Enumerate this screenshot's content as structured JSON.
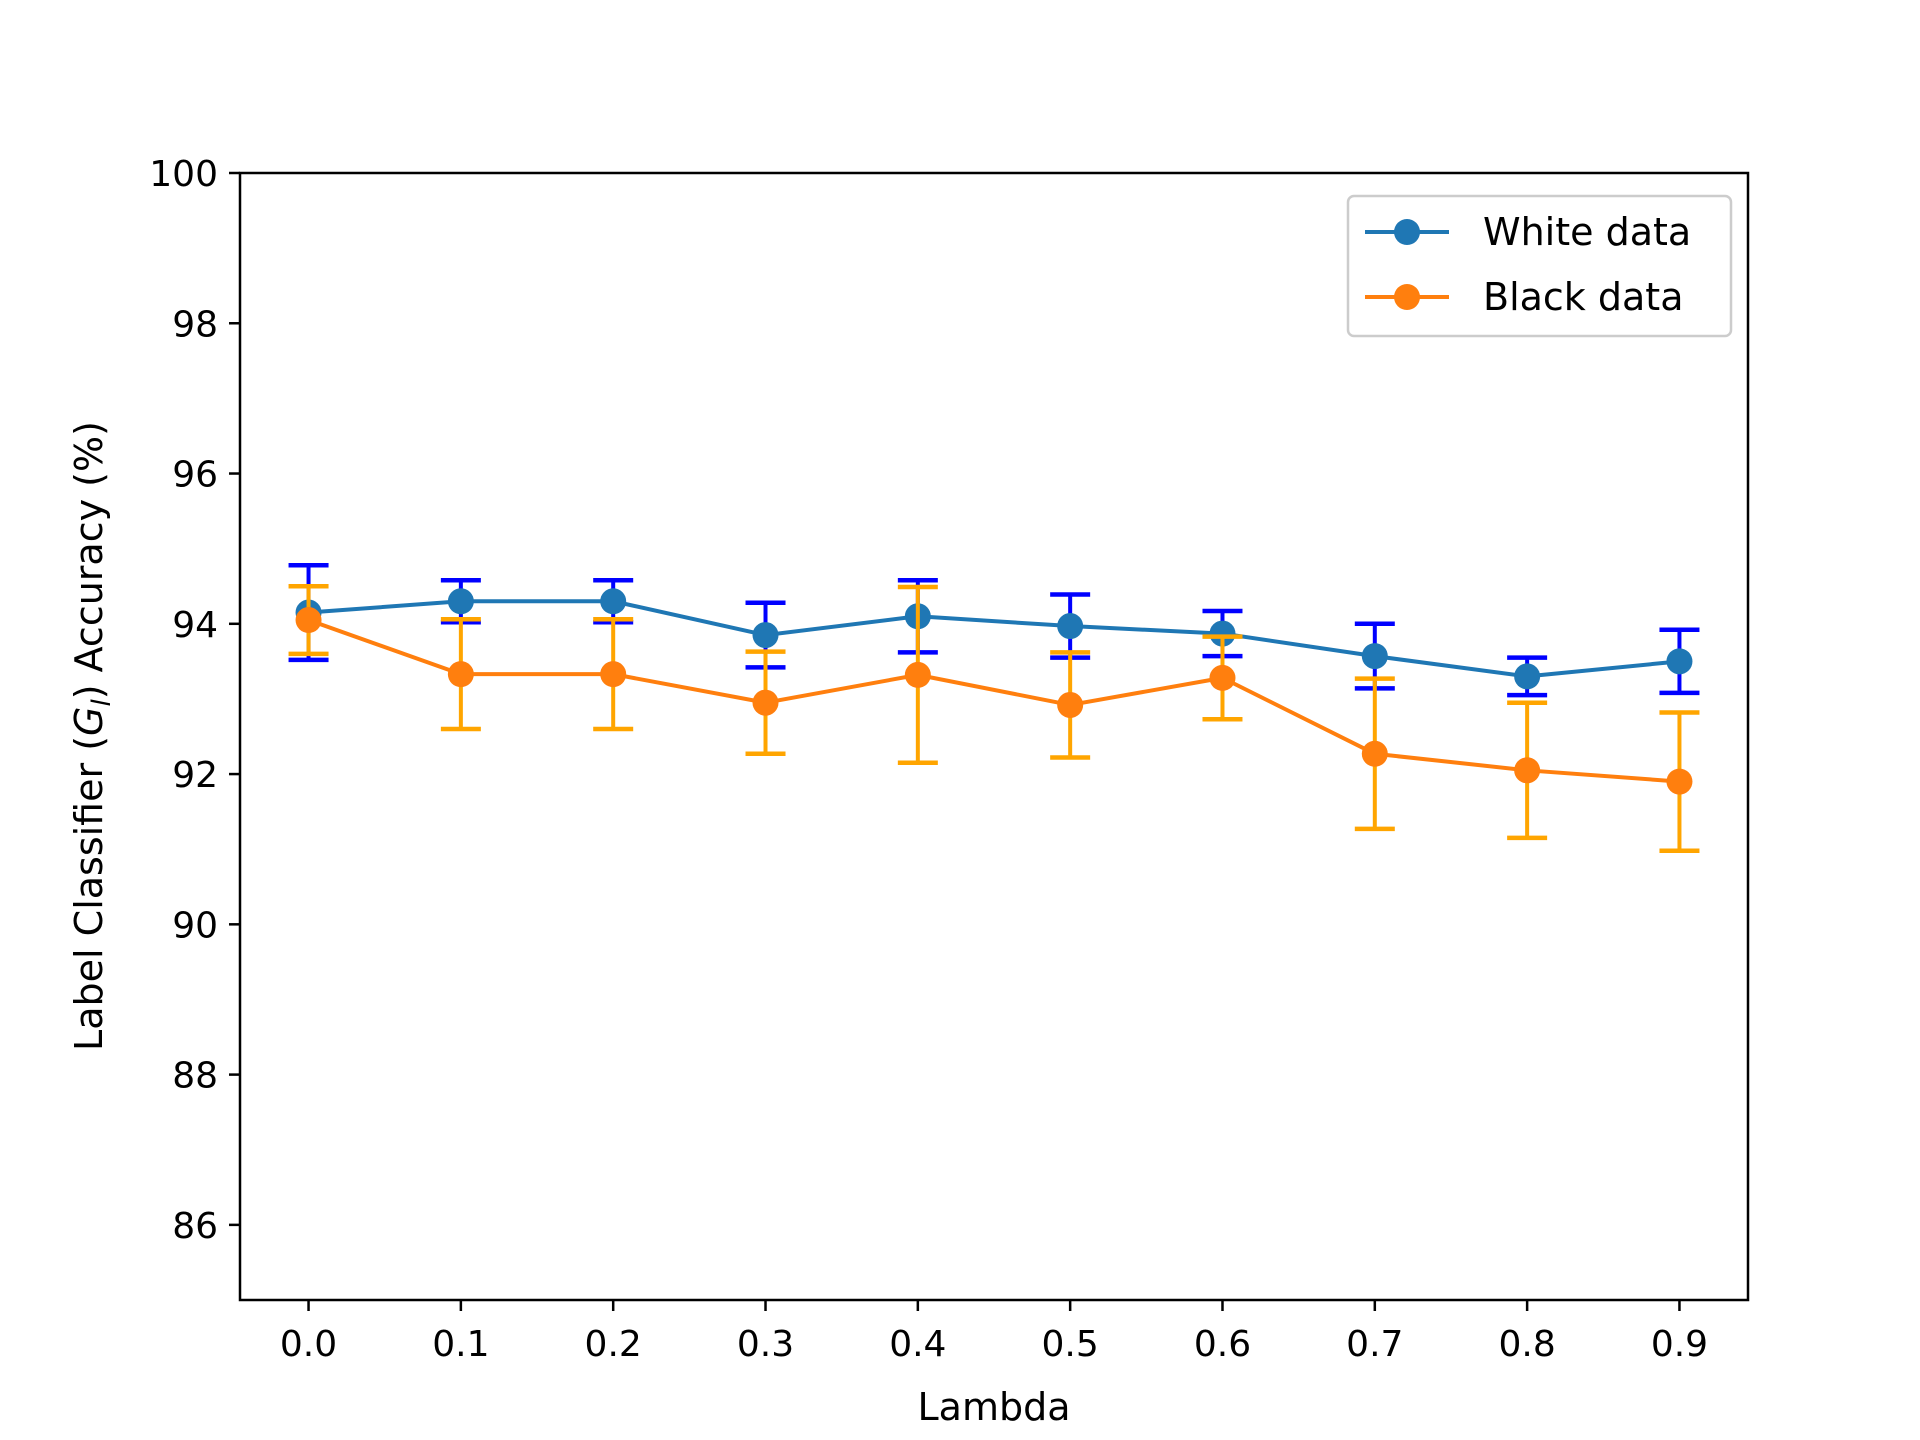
{
  "chart_data": {
    "type": "line",
    "xlabel": "Lambda",
    "ylabel": "Label Classifier (G_l) Accuracy (%)",
    "ylabel_parts": {
      "prefix": "Label Classifier (",
      "symbol": "G",
      "subscript": "l",
      "suffix": ") Accuracy (%)"
    },
    "x": [
      0.0,
      0.1,
      0.2,
      0.3,
      0.4,
      0.5,
      0.6,
      0.7,
      0.8,
      0.9
    ],
    "x_tick_labels": [
      "0.0",
      "0.1",
      "0.2",
      "0.3",
      "0.4",
      "0.5",
      "0.6",
      "0.7",
      "0.8",
      "0.9"
    ],
    "xlim": [
      -0.045,
      0.945
    ],
    "ylim": [
      85,
      100
    ],
    "y_ticks": [
      86,
      88,
      90,
      92,
      94,
      96,
      98,
      100
    ],
    "y_tick_labels": [
      "86",
      "88",
      "90",
      "92",
      "94",
      "96",
      "98",
      "100"
    ],
    "grid": false,
    "legend_position": "top-right",
    "series": [
      {
        "name": "White data",
        "color": "#1f77b4",
        "error_color": "#0000ff",
        "values": [
          94.15,
          94.3,
          94.3,
          93.85,
          94.1,
          93.97,
          93.87,
          93.57,
          93.3,
          93.5
        ],
        "errors": [
          0.63,
          0.28,
          0.28,
          0.43,
          0.48,
          0.42,
          0.3,
          0.43,
          0.25,
          0.42
        ]
      },
      {
        "name": "Black data",
        "color": "#ff7f0e",
        "error_color": "#ffa500",
        "values": [
          94.05,
          93.33,
          93.33,
          92.95,
          93.32,
          92.92,
          93.28,
          92.27,
          92.05,
          91.9
        ],
        "errors": [
          0.45,
          0.73,
          0.73,
          0.68,
          1.17,
          0.7,
          0.55,
          1.0,
          0.9,
          0.92
        ]
      }
    ]
  }
}
